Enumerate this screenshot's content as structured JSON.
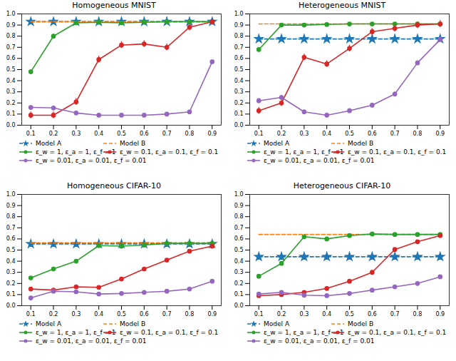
{
  "chart_data": [
    {
      "type": "line",
      "title": "Homogeneous MNIST",
      "x": [
        0.1,
        0.2,
        0.3,
        0.4,
        0.5,
        0.6,
        0.7,
        0.8,
        0.9
      ],
      "xlim": [
        0.06,
        0.94
      ],
      "xticks": [
        0.1,
        0.2,
        0.3,
        0.4,
        0.5,
        0.6,
        0.7,
        0.8,
        0.9
      ],
      "ylim": [
        0,
        1
      ],
      "yticks": [
        {
          "value": 0,
          "label": "0.0"
        },
        0.1,
        0.2,
        0.3,
        0.4,
        0.5,
        0.6,
        0.7,
        0.8,
        0.9,
        {
          "value": 1,
          "label": "1.0"
        }
      ],
      "legend": "bottom",
      "series": [
        {
          "name": "Model A",
          "color": "#1f77b4",
          "marker": "star",
          "line_style": "dashed",
          "values": [
            0.93,
            0.93,
            0.93,
            0.93,
            0.93,
            0.93,
            0.93,
            0.93,
            0.93
          ]
        },
        {
          "name": "Model B",
          "color": "#ff7f0e",
          "marker": "none",
          "line_style": "dashed",
          "values": [
            0.93,
            0.93,
            0.93,
            0.93,
            0.93,
            0.93,
            0.93,
            0.93,
            0.93
          ]
        },
        {
          "name": "ε_w = 1, ε_a = 1, ε_f = 1",
          "color": "#2ca02c",
          "marker": "circle",
          "line_style": "solid",
          "values": [
            0.48,
            0.8,
            0.92,
            0.925,
            0.92,
            0.925,
            0.93,
            0.93,
            0.93
          ],
          "errors": [
            0.015,
            0.015,
            0.012,
            0.01,
            0.01,
            0.01,
            0.01,
            0.01,
            0.01
          ]
        },
        {
          "name": "ε_w = 0.1, ε_a = 0.1, ε_f = 0.1",
          "color": "#d62728",
          "marker": "circle",
          "line_style": "solid",
          "values": [
            0.09,
            0.09,
            0.21,
            0.59,
            0.72,
            0.73,
            0.7,
            0.88,
            0.93
          ],
          "errors": [
            0.03,
            0.03,
            0.03,
            0.03,
            0.03,
            0.03,
            0.03,
            0.03,
            0.03
          ]
        },
        {
          "name": "ε_w = 0.01, ε_a = 0.01, ε_f = 0.01",
          "color": "#9467bd",
          "marker": "circle",
          "line_style": "solid",
          "values": [
            0.16,
            0.155,
            0.11,
            0.09,
            0.09,
            0.09,
            0.1,
            0.12,
            0.57
          ],
          "errors": [
            0.015,
            0.015,
            0.015,
            0.01,
            0.01,
            0.01,
            0.01,
            0.01,
            0.015
          ]
        }
      ]
    },
    {
      "type": "line",
      "title": "Heterogeneous MNIST",
      "x": [
        0.1,
        0.2,
        0.3,
        0.4,
        0.5,
        0.6,
        0.7,
        0.8,
        0.9
      ],
      "xlim": [
        0.06,
        0.94
      ],
      "xticks": [
        0.1,
        0.2,
        0.3,
        0.4,
        0.5,
        0.6,
        0.7,
        0.8,
        0.9
      ],
      "ylim": [
        0,
        1
      ],
      "yticks": [
        {
          "value": 0,
          "label": "0.0"
        },
        0.1,
        0.2,
        0.3,
        0.4,
        0.5,
        0.6,
        0.7,
        0.8,
        0.9,
        {
          "value": 1,
          "label": "1.0"
        }
      ],
      "legend": "bottom",
      "series": [
        {
          "name": "Model A",
          "color": "#1f77b4",
          "marker": "star",
          "line_style": "dashed",
          "values": [
            0.775,
            0.775,
            0.775,
            0.775,
            0.775,
            0.775,
            0.775,
            0.775,
            0.775
          ]
        },
        {
          "name": "Model B",
          "color": "#ff7f0e",
          "marker": "none",
          "line_style": "dashed",
          "values": [
            0.91,
            0.91,
            0.91,
            0.91,
            0.91,
            0.91,
            0.91,
            0.91,
            0.91
          ]
        },
        {
          "name": "ε_w = 1, ε_a = 1, ε_f = 1",
          "color": "#2ca02c",
          "marker": "circle",
          "line_style": "solid",
          "values": [
            0.68,
            0.9,
            0.9,
            0.905,
            0.91,
            0.91,
            0.91,
            0.91,
            0.91
          ],
          "errors": [
            0.012,
            0.01,
            0.01,
            0.01,
            0.01,
            0.01,
            0.01,
            0.01,
            0.01
          ]
        },
        {
          "name": "ε_w = 0.1, ε_a = 0.1, ε_f = 0.1",
          "color": "#d62728",
          "marker": "circle",
          "line_style": "solid",
          "values": [
            0.13,
            0.2,
            0.61,
            0.55,
            0.69,
            0.84,
            0.87,
            0.9,
            0.91
          ],
          "errors": [
            0.03,
            0.03,
            0.03,
            0.03,
            0.03,
            0.03,
            0.03,
            0.03,
            0.03
          ]
        },
        {
          "name": "ε_w = 0.01, ε_a = 0.01, ε_f = 0.01",
          "color": "#9467bd",
          "marker": "circle",
          "line_style": "solid",
          "values": [
            0.22,
            0.25,
            0.12,
            0.09,
            0.13,
            0.18,
            0.28,
            0.56,
            0.77
          ],
          "errors": [
            0.02,
            0.02,
            0.02,
            0.02,
            0.02,
            0.02,
            0.02,
            0.02,
            0.02
          ]
        }
      ]
    },
    {
      "type": "line",
      "title": "Homogeneous CIFAR-10",
      "x": [
        0.1,
        0.2,
        0.3,
        0.4,
        0.5,
        0.6,
        0.7,
        0.8,
        0.9
      ],
      "xlim": [
        0.06,
        0.94
      ],
      "xticks": [
        0.1,
        0.2,
        0.3,
        0.4,
        0.5,
        0.6,
        0.7,
        0.8,
        0.9
      ],
      "ylim": [
        0,
        1
      ],
      "yticks": [
        {
          "value": 0,
          "label": "0.0"
        },
        0.1,
        0.2,
        0.3,
        0.4,
        0.5,
        0.6,
        0.7,
        0.8,
        0.9,
        {
          "value": 1,
          "label": "1.0"
        }
      ],
      "legend": "bottom",
      "series": [
        {
          "name": "Model A",
          "color": "#1f77b4",
          "marker": "star",
          "line_style": "dashed",
          "values": [
            0.555,
            0.555,
            0.555,
            0.555,
            0.555,
            0.555,
            0.555,
            0.555,
            0.555
          ]
        },
        {
          "name": "Model B",
          "color": "#ff7f0e",
          "marker": "none",
          "line_style": "dashed",
          "values": [
            0.565,
            0.565,
            0.565,
            0.565,
            0.565,
            0.565,
            0.565,
            0.565,
            0.565
          ]
        },
        {
          "name": "ε_w = 1, ε_a = 1, ε_f = 1",
          "color": "#2ca02c",
          "marker": "circle",
          "line_style": "solid",
          "values": [
            0.25,
            0.33,
            0.4,
            0.54,
            0.535,
            0.545,
            0.56,
            0.56,
            0.56
          ],
          "errors": [
            0.012,
            0.012,
            0.012,
            0.01,
            0.01,
            0.01,
            0.01,
            0.01,
            0.01
          ]
        },
        {
          "name": "ε_w = 0.1, ε_a = 0.1, ε_f = 0.1",
          "color": "#d62728",
          "marker": "circle",
          "line_style": "solid",
          "values": [
            0.15,
            0.14,
            0.17,
            0.165,
            0.24,
            0.33,
            0.41,
            0.49,
            0.535
          ],
          "errors": [
            0.012,
            0.012,
            0.012,
            0.012,
            0.012,
            0.012,
            0.012,
            0.012,
            0.012
          ]
        },
        {
          "name": "ε_w = 0.01, ε_a = 0.01, ε_f = 0.01",
          "color": "#9467bd",
          "marker": "circle",
          "line_style": "solid",
          "values": [
            0.07,
            0.13,
            0.125,
            0.105,
            0.11,
            0.12,
            0.13,
            0.15,
            0.22
          ],
          "errors": [
            0.008,
            0.008,
            0.008,
            0.008,
            0.008,
            0.008,
            0.008,
            0.008,
            0.008
          ]
        }
      ]
    },
    {
      "type": "line",
      "title": "Heterogeneous CIFAR-10",
      "x": [
        0.1,
        0.2,
        0.3,
        0.4,
        0.5,
        0.6,
        0.7,
        0.8,
        0.9
      ],
      "xlim": [
        0.06,
        0.94
      ],
      "xticks": [
        0.1,
        0.2,
        0.3,
        0.4,
        0.5,
        0.6,
        0.7,
        0.8,
        0.9
      ],
      "ylim": [
        0,
        1
      ],
      "yticks": [
        {
          "value": 0,
          "label": "0.0"
        },
        0.1,
        0.2,
        0.3,
        0.4,
        0.5,
        0.6,
        0.7,
        0.8,
        0.9,
        {
          "value": 1,
          "label": "1.0"
        }
      ],
      "legend": "bottom",
      "series": [
        {
          "name": "Model A",
          "color": "#1f77b4",
          "marker": "star",
          "line_style": "dashed",
          "values": [
            0.44,
            0.44,
            0.44,
            0.44,
            0.44,
            0.44,
            0.44,
            0.44,
            0.44
          ]
        },
        {
          "name": "Model B",
          "color": "#ff7f0e",
          "marker": "none",
          "line_style": "dashed",
          "values": [
            0.64,
            0.64,
            0.64,
            0.64,
            0.64,
            0.64,
            0.64,
            0.64,
            0.64
          ]
        },
        {
          "name": "ε_w = 1, ε_a = 1, ε_f = 1",
          "color": "#2ca02c",
          "marker": "circle",
          "line_style": "solid",
          "values": [
            0.265,
            0.38,
            0.62,
            0.6,
            0.63,
            0.645,
            0.64,
            0.64,
            0.64
          ],
          "errors": [
            0.012,
            0.012,
            0.012,
            0.012,
            0.01,
            0.01,
            0.01,
            0.01,
            0.01
          ]
        },
        {
          "name": "ε_w = 0.1, ε_a = 0.1, ε_f = 0.1",
          "color": "#d62728",
          "marker": "circle",
          "line_style": "solid",
          "values": [
            0.09,
            0.1,
            0.12,
            0.155,
            0.22,
            0.3,
            0.505,
            0.575,
            0.63
          ],
          "errors": [
            0.015,
            0.015,
            0.015,
            0.015,
            0.015,
            0.015,
            0.015,
            0.015,
            0.015
          ]
        },
        {
          "name": "ε_w = 0.01, ε_a = 0.01, ε_f = 0.01",
          "color": "#9467bd",
          "marker": "circle",
          "line_style": "solid",
          "values": [
            0.105,
            0.12,
            0.095,
            0.09,
            0.11,
            0.14,
            0.17,
            0.2,
            0.26
          ],
          "errors": [
            0.008,
            0.008,
            0.008,
            0.008,
            0.008,
            0.008,
            0.008,
            0.008,
            0.008
          ]
        }
      ]
    }
  ]
}
